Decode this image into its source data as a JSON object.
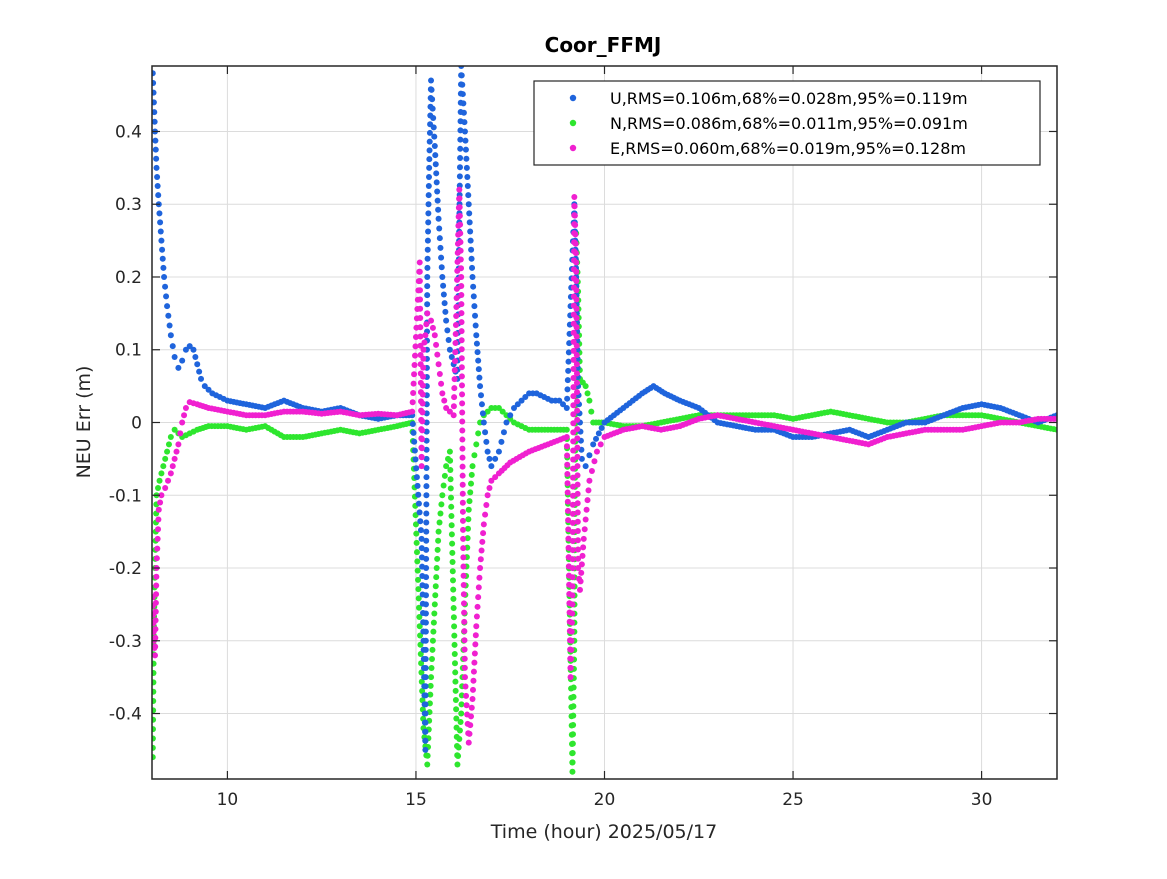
{
  "chart_data": {
    "type": "scatter",
    "title": "Coor_FFMJ",
    "xlabel": "Time (hour)  2025/05/17",
    "ylabel": "NEU Err (m)",
    "xlim": [
      8,
      32
    ],
    "ylim": [
      -0.49,
      0.49
    ],
    "xticks": [
      10,
      15,
      20,
      25,
      30
    ],
    "xtick_labels": [
      "10",
      "15",
      "20",
      "25",
      "30"
    ],
    "yticks": [
      0.4,
      0.3,
      0.2,
      0.1,
      0,
      -0.1,
      -0.2,
      -0.3,
      -0.4
    ],
    "ytick_labels": [
      "0.4",
      "0.3",
      "0.2",
      "0.1",
      "0",
      "-0.1",
      "-0.2",
      "-0.3",
      "-0.4"
    ],
    "grid": true,
    "legend_position": "top-right",
    "series": [
      {
        "name": "U,RMS=0.106m,68%=0.028m,95%=0.119m",
        "color": "#1f64dc",
        "points": [
          [
            8.02,
            0.48
          ],
          [
            8.05,
            0.44
          ],
          [
            8.08,
            0.4
          ],
          [
            8.12,
            0.35
          ],
          [
            8.18,
            0.3
          ],
          [
            8.25,
            0.25
          ],
          [
            8.32,
            0.2
          ],
          [
            8.4,
            0.16
          ],
          [
            8.5,
            0.12
          ],
          [
            8.6,
            0.09
          ],
          [
            8.7,
            0.075
          ],
          [
            8.8,
            0.085
          ],
          [
            8.9,
            0.1
          ],
          [
            9.0,
            0.105
          ],
          [
            9.1,
            0.1
          ],
          [
            9.2,
            0.08
          ],
          [
            9.3,
            0.06
          ],
          [
            9.4,
            0.05
          ],
          [
            9.6,
            0.04
          ],
          [
            9.8,
            0.035
          ],
          [
            10.0,
            0.03
          ],
          [
            10.5,
            0.025
          ],
          [
            11.0,
            0.02
          ],
          [
            11.5,
            0.03
          ],
          [
            12.0,
            0.02
          ],
          [
            12.5,
            0.015
          ],
          [
            13.0,
            0.02
          ],
          [
            13.5,
            0.01
          ],
          [
            14.0,
            0.005
          ],
          [
            14.5,
            0.01
          ],
          [
            14.9,
            0.01
          ],
          [
            15.15,
            -0.16
          ],
          [
            15.2,
            -0.3
          ],
          [
            15.25,
            -0.45
          ],
          [
            15.3,
            0.2
          ],
          [
            15.35,
            0.35
          ],
          [
            15.4,
            0.47
          ],
          [
            15.5,
            0.38
          ],
          [
            15.6,
            0.28
          ],
          [
            15.7,
            0.2
          ],
          [
            15.8,
            0.14
          ],
          [
            15.9,
            0.1
          ],
          [
            16.0,
            0.08
          ],
          [
            16.1,
            0.06
          ],
          [
            16.2,
            0.49
          ],
          [
            16.3,
            0.4
          ],
          [
            16.4,
            0.3
          ],
          [
            16.5,
            0.2
          ],
          [
            16.6,
            0.12
          ],
          [
            16.7,
            0.05
          ],
          [
            16.8,
            0.0
          ],
          [
            16.9,
            -0.04
          ],
          [
            17.0,
            -0.06
          ],
          [
            17.2,
            -0.04
          ],
          [
            17.4,
            0.0
          ],
          [
            17.6,
            0.02
          ],
          [
            17.8,
            0.03
          ],
          [
            18.0,
            0.04
          ],
          [
            18.2,
            0.04
          ],
          [
            18.4,
            0.035
          ],
          [
            18.6,
            0.03
          ],
          [
            18.8,
            0.03
          ],
          [
            19.0,
            0.02
          ],
          [
            19.2,
            0.3
          ],
          [
            19.25,
            0.2
          ],
          [
            19.3,
            0.05
          ],
          [
            19.4,
            -0.05
          ],
          [
            19.5,
            -0.06
          ],
          [
            19.7,
            -0.03
          ],
          [
            20.0,
            0.0
          ],
          [
            20.5,
            0.02
          ],
          [
            21.0,
            0.04
          ],
          [
            21.3,
            0.05
          ],
          [
            21.6,
            0.04
          ],
          [
            22.0,
            0.03
          ],
          [
            22.5,
            0.02
          ],
          [
            23.0,
            0.0
          ],
          [
            23.5,
            -0.005
          ],
          [
            24.0,
            -0.01
          ],
          [
            24.5,
            -0.01
          ],
          [
            25.0,
            -0.02
          ],
          [
            25.5,
            -0.02
          ],
          [
            26.0,
            -0.015
          ],
          [
            26.5,
            -0.01
          ],
          [
            27.0,
            -0.02
          ],
          [
            27.5,
            -0.01
          ],
          [
            28.0,
            0.0
          ],
          [
            28.5,
            0.0
          ],
          [
            29.0,
            0.01
          ],
          [
            29.5,
            0.02
          ],
          [
            30.0,
            0.025
          ],
          [
            30.5,
            0.02
          ],
          [
            31.0,
            0.01
          ],
          [
            31.5,
            0.0
          ],
          [
            32.0,
            0.01
          ]
        ]
      },
      {
        "name": "N,RMS=0.086m,68%=0.011m,95%=0.091m",
        "color": "#2ee62e",
        "points": [
          [
            8.02,
            -0.46
          ],
          [
            8.05,
            -0.28
          ],
          [
            8.08,
            -0.2
          ],
          [
            8.12,
            -0.1
          ],
          [
            8.2,
            -0.08
          ],
          [
            8.3,
            -0.06
          ],
          [
            8.4,
            -0.04
          ],
          [
            8.5,
            -0.02
          ],
          [
            8.6,
            -0.01
          ],
          [
            8.8,
            -0.02
          ],
          [
            9.0,
            -0.015
          ],
          [
            9.2,
            -0.01
          ],
          [
            9.5,
            -0.005
          ],
          [
            10.0,
            -0.005
          ],
          [
            10.5,
            -0.01
          ],
          [
            11.0,
            -0.005
          ],
          [
            11.5,
            -0.02
          ],
          [
            12.0,
            -0.02
          ],
          [
            12.5,
            -0.015
          ],
          [
            13.0,
            -0.01
          ],
          [
            13.5,
            -0.015
          ],
          [
            14.0,
            -0.01
          ],
          [
            14.5,
            -0.005
          ],
          [
            14.9,
            0.0
          ],
          [
            15.2,
            -0.42
          ],
          [
            15.3,
            -0.47
          ],
          [
            15.4,
            -0.35
          ],
          [
            15.5,
            -0.25
          ],
          [
            15.6,
            -0.15
          ],
          [
            15.7,
            -0.1
          ],
          [
            15.8,
            -0.06
          ],
          [
            15.9,
            -0.04
          ],
          [
            16.1,
            -0.47
          ],
          [
            16.2,
            -0.4
          ],
          [
            16.3,
            -0.25
          ],
          [
            16.4,
            -0.12
          ],
          [
            16.5,
            -0.06
          ],
          [
            16.6,
            -0.03
          ],
          [
            16.7,
            0.0
          ],
          [
            16.8,
            0.01
          ],
          [
            17.0,
            0.02
          ],
          [
            17.2,
            0.02
          ],
          [
            17.4,
            0.01
          ],
          [
            17.6,
            0.0
          ],
          [
            17.8,
            -0.005
          ],
          [
            18.0,
            -0.01
          ],
          [
            18.5,
            -0.01
          ],
          [
            19.0,
            -0.01
          ],
          [
            19.15,
            -0.48
          ],
          [
            19.2,
            -0.3
          ],
          [
            19.25,
            0.26
          ],
          [
            19.3,
            0.18
          ],
          [
            19.35,
            0.06
          ],
          [
            19.5,
            0.05
          ],
          [
            19.6,
            0.03
          ],
          [
            19.7,
            0.0
          ],
          [
            20.0,
            0.0
          ],
          [
            20.5,
            -0.005
          ],
          [
            21.0,
            -0.005
          ],
          [
            21.5,
            0.0
          ],
          [
            22.0,
            0.005
          ],
          [
            22.5,
            0.01
          ],
          [
            23.0,
            0.01
          ],
          [
            23.5,
            0.01
          ],
          [
            24.0,
            0.01
          ],
          [
            24.5,
            0.01
          ],
          [
            25.0,
            0.005
          ],
          [
            25.5,
            0.01
          ],
          [
            26.0,
            0.015
          ],
          [
            26.5,
            0.01
          ],
          [
            27.0,
            0.005
          ],
          [
            27.5,
            0.0
          ],
          [
            28.0,
            0.0
          ],
          [
            28.5,
            0.005
          ],
          [
            29.0,
            0.01
          ],
          [
            29.5,
            0.01
          ],
          [
            30.0,
            0.01
          ],
          [
            30.5,
            0.005
          ],
          [
            31.0,
            0.0
          ],
          [
            31.5,
            -0.005
          ],
          [
            32.0,
            -0.01
          ]
        ]
      },
      {
        "name": "E,RMS=0.060m,68%=0.019m,95%=0.128m",
        "color": "#f020d0",
        "points": [
          [
            8.02,
            -0.24
          ],
          [
            8.05,
            -0.3
          ],
          [
            8.08,
            -0.32
          ],
          [
            8.12,
            -0.2
          ],
          [
            8.18,
            -0.12
          ],
          [
            8.25,
            -0.1
          ],
          [
            8.35,
            -0.09
          ],
          [
            8.5,
            -0.07
          ],
          [
            8.6,
            -0.05
          ],
          [
            8.7,
            -0.03
          ],
          [
            8.8,
            0.0
          ],
          [
            8.9,
            0.02
          ],
          [
            9.0,
            0.028
          ],
          [
            9.2,
            0.025
          ],
          [
            9.5,
            0.02
          ],
          [
            10.0,
            0.015
          ],
          [
            10.5,
            0.01
          ],
          [
            11.0,
            0.01
          ],
          [
            11.5,
            0.015
          ],
          [
            12.0,
            0.015
          ],
          [
            12.5,
            0.012
          ],
          [
            13.0,
            0.015
          ],
          [
            13.5,
            0.01
          ],
          [
            14.0,
            0.012
          ],
          [
            14.5,
            0.01
          ],
          [
            14.9,
            0.015
          ],
          [
            15.1,
            0.22
          ],
          [
            15.15,
            -0.06
          ],
          [
            15.2,
            0.1
          ],
          [
            15.25,
            0.12
          ],
          [
            15.3,
            0.15
          ],
          [
            15.4,
            0.14
          ],
          [
            15.5,
            0.12
          ],
          [
            15.6,
            0.08
          ],
          [
            15.7,
            0.04
          ],
          [
            15.8,
            0.02
          ],
          [
            15.9,
            0.015
          ],
          [
            16.0,
            0.01
          ],
          [
            16.15,
            0.32
          ],
          [
            16.2,
            0.2
          ],
          [
            16.25,
            -0.16
          ],
          [
            16.3,
            -0.35
          ],
          [
            16.4,
            -0.44
          ],
          [
            16.5,
            -0.38
          ],
          [
            16.6,
            -0.28
          ],
          [
            16.7,
            -0.2
          ],
          [
            16.8,
            -0.14
          ],
          [
            16.9,
            -0.1
          ],
          [
            17.0,
            -0.08
          ],
          [
            17.2,
            -0.07
          ],
          [
            17.5,
            -0.055
          ],
          [
            18.0,
            -0.04
          ],
          [
            18.5,
            -0.03
          ],
          [
            19.0,
            -0.02
          ],
          [
            19.1,
            -0.35
          ],
          [
            19.15,
            -0.25
          ],
          [
            19.2,
            0.31
          ],
          [
            19.25,
            0.22
          ],
          [
            19.3,
            -0.2
          ],
          [
            19.35,
            -0.23
          ],
          [
            19.45,
            -0.16
          ],
          [
            19.6,
            -0.08
          ],
          [
            19.8,
            -0.04
          ],
          [
            20.0,
            -0.02
          ],
          [
            20.5,
            -0.01
          ],
          [
            21.0,
            -0.005
          ],
          [
            21.5,
            -0.01
          ],
          [
            22.0,
            -0.005
          ],
          [
            22.5,
            0.005
          ],
          [
            23.0,
            0.01
          ],
          [
            23.5,
            0.005
          ],
          [
            24.0,
            0.0
          ],
          [
            24.5,
            -0.005
          ],
          [
            25.0,
            -0.01
          ],
          [
            25.5,
            -0.015
          ],
          [
            26.0,
            -0.02
          ],
          [
            26.5,
            -0.025
          ],
          [
            27.0,
            -0.03
          ],
          [
            27.5,
            -0.02
          ],
          [
            28.0,
            -0.015
          ],
          [
            28.5,
            -0.01
          ],
          [
            29.0,
            -0.01
          ],
          [
            29.5,
            -0.01
          ],
          [
            30.0,
            -0.005
          ],
          [
            30.5,
            0.0
          ],
          [
            31.0,
            0.0
          ],
          [
            31.5,
            0.005
          ],
          [
            32.0,
            0.005
          ]
        ]
      }
    ]
  }
}
